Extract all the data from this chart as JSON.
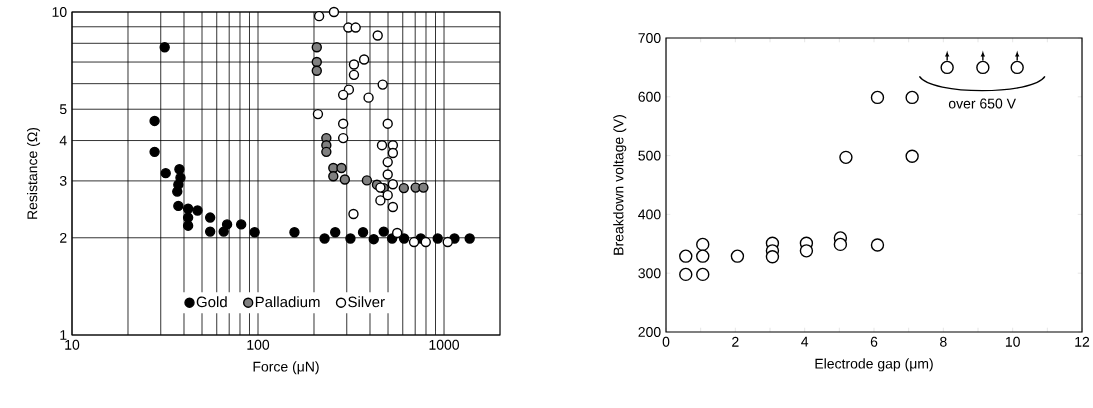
{
  "chart_data": [
    {
      "type": "scatter",
      "xlabel": "Force (μN)",
      "ylabel": "Resistance (Ω)",
      "log": "xy",
      "grid": true,
      "legend": "bottom",
      "xlim": [
        10,
        2000
      ],
      "ylim": [
        1,
        10
      ],
      "xticks": [
        10,
        {
          "value": 20,
          "label": null
        },
        {
          "value": 30,
          "label": null
        },
        {
          "value": 40,
          "label": null
        },
        {
          "value": 50,
          "label": null
        },
        {
          "value": 60,
          "label": null
        },
        {
          "value": 70,
          "label": null
        },
        {
          "value": 80,
          "label": null
        },
        {
          "value": 90,
          "label": null
        },
        100,
        {
          "value": 200,
          "label": null
        },
        {
          "value": 300,
          "label": null
        },
        {
          "value": 400,
          "label": null
        },
        {
          "value": 500,
          "label": null
        },
        {
          "value": 600,
          "label": null
        },
        {
          "value": 700,
          "label": null
        },
        {
          "value": 800,
          "label": null
        },
        {
          "value": 900,
          "label": null
        },
        1000
      ],
      "yticks": [
        1,
        2,
        3,
        4,
        5,
        {
          "value": 6,
          "label": null
        },
        {
          "value": 7,
          "label": null
        },
        {
          "value": 8,
          "label": null
        },
        {
          "value": 9,
          "label": null
        },
        10
      ],
      "series": [
        {
          "name": "Gold",
          "color": "#000000",
          "x": [
            31.5,
            27.8,
            27.8,
            31.9,
            37.8,
            38.3,
            37.3,
            36.8,
            37.3,
            42.1,
            47.3,
            42.1,
            42.1,
            55.3,
            55.3,
            65.4,
            68.2,
            81.2,
            95.9,
            157,
            228,
            260,
            314,
            367,
            419,
            474,
            526,
            610,
            750,
            925,
            1138,
            1374
          ],
          "values": [
            7.78,
            4.6,
            3.69,
            3.17,
            3.26,
            3.07,
            2.92,
            2.78,
            2.51,
            2.46,
            2.43,
            2.31,
            2.18,
            2.31,
            2.09,
            2.09,
            2.2,
            2.2,
            2.08,
            2.08,
            1.99,
            2.08,
            1.99,
            2.08,
            1.98,
            2.09,
            1.99,
            1.99,
            1.99,
            1.99,
            1.99,
            1.99
          ]
        },
        {
          "name": "Palladium",
          "color": "#808080",
          "x": [
            207,
            207,
            207,
            233,
            233,
            233,
            254,
            254,
            281,
            293,
            385,
            436,
            474,
            608,
            704,
            775
          ],
          "values": [
            7.78,
            7.0,
            6.58,
            4.07,
            3.87,
            3.69,
            3.29,
            3.1,
            3.29,
            3.03,
            3.01,
            2.92,
            2.85,
            2.85,
            2.86,
            2.86
          ]
        },
        {
          "name": "Silver",
          "color": "#ffffff",
          "x": [
            213,
            256,
            306,
            335,
            440,
            372,
            328,
            328,
            468,
            308,
            287,
            393,
            210,
            287,
            498,
            287,
            464,
            531,
            531,
            498,
            498,
            531,
            455,
            455,
            498,
            531,
            326,
            560,
            690,
            798,
            1047
          ],
          "values": [
            9.71,
            10,
            8.95,
            8.95,
            8.46,
            7.13,
            6.88,
            6.39,
            5.96,
            5.75,
            5.54,
            5.43,
            4.83,
            4.51,
            4.51,
            4.07,
            3.87,
            3.87,
            3.66,
            3.43,
            3.14,
            2.93,
            2.86,
            2.61,
            2.71,
            2.49,
            2.37,
            2.07,
            1.94,
            1.94,
            1.94
          ]
        }
      ]
    },
    {
      "type": "scatter",
      "xlabel": "Electrode gap  (μm)",
      "ylabel": "Breakdown voltage (V)",
      "xlim": [
        0,
        12
      ],
      "ylim": [
        200,
        700
      ],
      "xticks": [
        0,
        {
          "value": 1,
          "label": null
        },
        2,
        {
          "value": 3,
          "label": null
        },
        4,
        {
          "value": 5,
          "label": null
        },
        6,
        {
          "value": 7,
          "label": null
        },
        8,
        {
          "value": 9,
          "label": null
        },
        10,
        {
          "value": 11,
          "label": null
        },
        12
      ],
      "yticks": [
        200,
        300,
        400,
        500,
        600,
        700
      ],
      "annotations": [
        "over 650 V"
      ],
      "series": [
        {
          "color": "#ffffff",
          "x": [
            0.57,
            0.57,
            1.06,
            1.06,
            1.06,
            2.06,
            3.07,
            3.07,
            3.07,
            4.05,
            4.05,
            5.03,
            5.03,
            5.19,
            6.1,
            6.1,
            7.1,
            7.1,
            8.11,
            9.14,
            10.13
          ],
          "values": [
            329,
            298,
            349,
            329,
            298,
            329,
            351,
            338,
            328,
            351,
            338,
            360,
            349,
            497,
            348,
            599,
            599,
            499,
            650,
            650,
            650
          ]
        }
      ]
    }
  ]
}
